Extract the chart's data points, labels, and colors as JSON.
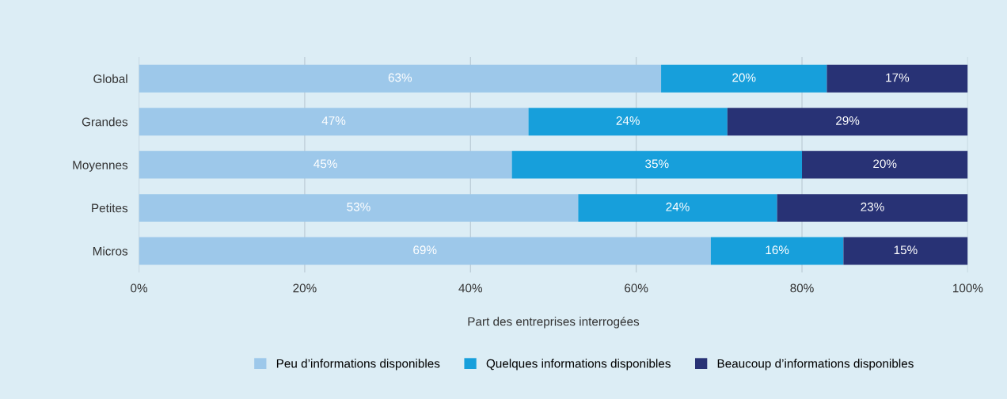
{
  "chart_data": {
    "type": "bar",
    "orientation": "horizontal",
    "stacked": true,
    "xlabel": "Part des entreprises interrogées",
    "categories": [
      "Global",
      "Grandes",
      "Moyennes",
      "Petites",
      "Micros"
    ],
    "series": [
      {
        "name": "Peu d’informations disponibles",
        "color": "#9dc8ea",
        "values": [
          63,
          47,
          45,
          53,
          69
        ],
        "value_labels": [
          "63%",
          "47%",
          "45%",
          "53%",
          "69%"
        ]
      },
      {
        "name": "Quelques informations disponibles",
        "color": "#179fdb",
        "values": [
          20,
          24,
          35,
          24,
          16
        ],
        "value_labels": [
          "20%",
          "24%",
          "35%",
          "24%",
          "16%"
        ]
      },
      {
        "name": "Beaucoup d’informations disponibles",
        "color": "#283275",
        "values": [
          17,
          29,
          20,
          23,
          15
        ],
        "value_labels": [
          "17%",
          "29%",
          "20%",
          "23%",
          "15%"
        ]
      }
    ],
    "xlim": [
      0,
      100
    ],
    "xticks": [
      {
        "value": 0,
        "label": "0%"
      },
      {
        "value": 20,
        "label": "20%"
      },
      {
        "value": 40,
        "label": "40%"
      },
      {
        "value": 60,
        "label": "60%"
      },
      {
        "value": 80,
        "label": "80%"
      },
      {
        "value": 100,
        "label": "100%"
      }
    ],
    "grid": "x",
    "legend": "bottom"
  }
}
